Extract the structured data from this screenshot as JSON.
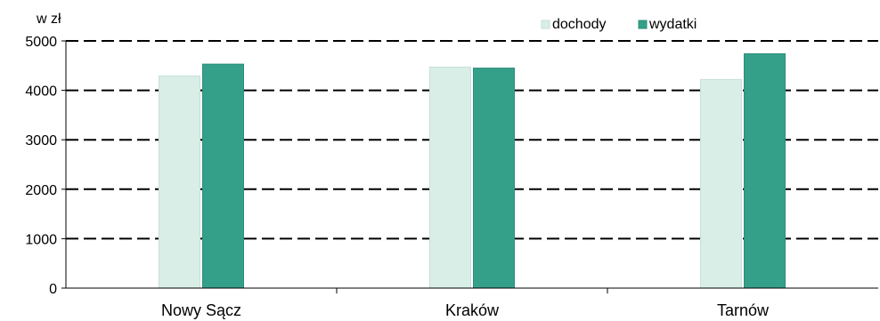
{
  "chart_data": {
    "type": "bar",
    "ylabel": "w zł",
    "xlabel": "",
    "categories": [
      "Nowy Sącz",
      "Kraków",
      "Tarnów"
    ],
    "series": [
      {
        "name": "dochody",
        "values": [
          4290,
          4470,
          4220
        ],
        "color": "#d9eee7",
        "stroke": "#c7dfd7"
      },
      {
        "name": "wydatki",
        "values": [
          4530,
          4450,
          4740
        ],
        "color": "#35a08a",
        "stroke": "#2d8d79"
      }
    ],
    "ylim": [
      0,
      5000
    ],
    "yticks": [
      0,
      1000,
      2000,
      3000,
      4000,
      5000
    ],
    "grid": "horizontal dashed",
    "legend_position": "top-right"
  }
}
